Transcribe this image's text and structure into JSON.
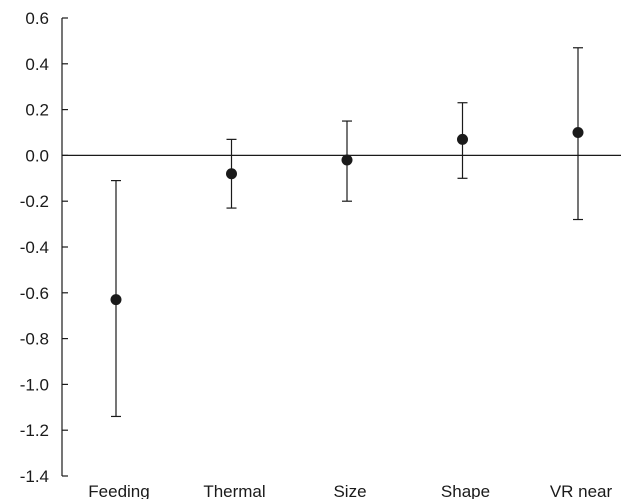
{
  "chart_data": {
    "type": "scatter",
    "title": "",
    "xlabel": "",
    "ylabel": "",
    "categories": [
      "Feeding",
      "Thermal",
      "Size",
      "Shape",
      "VR near"
    ],
    "series": [
      {
        "estimate": [
          -0.63,
          -0.08,
          -0.02,
          0.07,
          0.1
        ],
        "lower": [
          -1.14,
          -0.23,
          -0.2,
          -0.1,
          -0.28
        ],
        "upper": [
          -0.11,
          0.07,
          0.15,
          0.23,
          0.47
        ]
      }
    ],
    "ylim": [
      -1.4,
      0.6
    ],
    "yticks": [
      "0.6",
      "0.4",
      "0.2",
      "0.0",
      "-0.2",
      "-0.4",
      "-0.6",
      "-0.8",
      "-1.0",
      "-1.2",
      "-1.4"
    ],
    "reference_line": 0,
    "grid": false,
    "legend": "none",
    "colors": {
      "marker": "#1a1a1a",
      "axis": "#1a1a1a",
      "background": "#ffffff"
    }
  }
}
